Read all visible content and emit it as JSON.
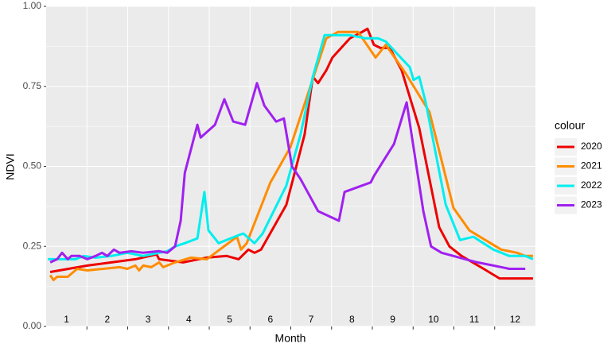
{
  "chart_data": {
    "type": "line",
    "x_label": "Month",
    "y_label": "NDVI",
    "legend_title": "colour",
    "xlim": [
      1,
      13
    ],
    "xticks": [
      {
        "value": 1.5,
        "label": "1"
      },
      {
        "value": 2.5,
        "label": "2"
      },
      {
        "value": 3.5,
        "label": "3"
      },
      {
        "value": 4.5,
        "label": "4"
      },
      {
        "value": 5.5,
        "label": "5"
      },
      {
        "value": 6.5,
        "label": "6"
      },
      {
        "value": 7.5,
        "label": "7"
      },
      {
        "value": 8.5,
        "label": "8"
      },
      {
        "value": 9.5,
        "label": "9"
      },
      {
        "value": 10.5,
        "label": "10"
      },
      {
        "value": 11.5,
        "label": "11"
      },
      {
        "value": 12.5,
        "label": "12"
      }
    ],
    "xbreaks": [
      2,
      3,
      4,
      5,
      6,
      7,
      8,
      9,
      10,
      11,
      12
    ],
    "ylim": [
      0,
      1
    ],
    "yticks": [
      {
        "value": 0,
        "label": "0.00"
      },
      {
        "value": 0.25,
        "label": "0.25"
      },
      {
        "value": 0.5,
        "label": "0.50"
      },
      {
        "value": 0.75,
        "label": "0.75"
      },
      {
        "value": 1,
        "label": "1.00"
      }
    ],
    "yminor": [
      0.125,
      0.375,
      0.625,
      0.875
    ],
    "grid": true,
    "series": [
      {
        "name": "2020",
        "color": "#ee0000",
        "x": [
          1.1,
          2.01,
          2.6,
          3.19,
          3.71,
          3.77,
          4.36,
          4.94,
          5.43,
          5.72,
          5.96,
          6.11,
          6.27,
          6.89,
          7.34,
          7.54,
          7.67,
          7.87,
          8.02,
          8.45,
          8.75,
          8.88,
          9.04,
          9.2,
          9.43,
          9.72,
          10.15,
          10.64,
          10.89,
          11.19,
          11.73,
          12.12,
          12.55,
          12.94
        ],
        "values": [
          0.17,
          0.19,
          0.2,
          0.21,
          0.225,
          0.21,
          0.2,
          0.215,
          0.22,
          0.21,
          0.24,
          0.23,
          0.24,
          0.38,
          0.6,
          0.78,
          0.76,
          0.8,
          0.84,
          0.9,
          0.92,
          0.93,
          0.88,
          0.87,
          0.87,
          0.8,
          0.62,
          0.31,
          0.25,
          0.22,
          0.18,
          0.15,
          0.15,
          0.15
        ]
      },
      {
        "name": "2021",
        "color": "#ff8c00",
        "x": [
          1.1,
          1.18,
          1.27,
          1.53,
          1.76,
          2.01,
          2.4,
          2.8,
          2.99,
          3.19,
          3.28,
          3.38,
          3.58,
          3.77,
          3.87,
          4.16,
          4.55,
          4.94,
          5.68,
          5.78,
          5.92,
          6.5,
          6.99,
          7.48,
          7.87,
          8.16,
          8.65,
          9.08,
          9.33,
          9.82,
          10.4,
          10.99,
          11.38,
          11.77,
          12.16,
          12.55,
          12.75,
          12.94
        ],
        "values": [
          0.16,
          0.145,
          0.155,
          0.155,
          0.18,
          0.175,
          0.18,
          0.185,
          0.18,
          0.19,
          0.175,
          0.19,
          0.185,
          0.2,
          0.185,
          0.2,
          0.215,
          0.21,
          0.28,
          0.24,
          0.26,
          0.45,
          0.56,
          0.75,
          0.9,
          0.92,
          0.92,
          0.84,
          0.88,
          0.79,
          0.67,
          0.37,
          0.3,
          0.27,
          0.24,
          0.23,
          0.22,
          0.22
        ]
      },
      {
        "name": "2022",
        "color": "#00eeee",
        "x": [
          1.04,
          1.33,
          1.72,
          1.92,
          2.21,
          2.6,
          2.8,
          2.99,
          3.38,
          3.97,
          4.16,
          4.4,
          4.71,
          4.88,
          4.98,
          5.23,
          5.72,
          5.84,
          6.11,
          6.31,
          6.89,
          7.24,
          7.34,
          7.54,
          7.83,
          8.45,
          8.84,
          9.14,
          9.33,
          9.62,
          9.92,
          10.01,
          10.15,
          10.31,
          10.8,
          11.15,
          11.48,
          11.97,
          12.36,
          12.75,
          12.94
        ],
        "values": [
          0.21,
          0.21,
          0.21,
          0.22,
          0.215,
          0.22,
          0.225,
          0.23,
          0.22,
          0.235,
          0.25,
          0.26,
          0.275,
          0.42,
          0.3,
          0.26,
          0.285,
          0.29,
          0.26,
          0.29,
          0.44,
          0.6,
          0.66,
          0.78,
          0.91,
          0.91,
          0.9,
          0.9,
          0.89,
          0.85,
          0.81,
          0.77,
          0.78,
          0.7,
          0.38,
          0.27,
          0.28,
          0.24,
          0.22,
          0.22,
          0.21
        ]
      },
      {
        "name": "2023",
        "color": "#a020f0",
        "x": [
          1.1,
          1.27,
          1.39,
          1.53,
          1.62,
          1.82,
          2.01,
          2.21,
          2.37,
          2.5,
          2.66,
          2.8,
          3.09,
          3.38,
          3.77,
          3.97,
          4.16,
          4.3,
          4.4,
          4.71,
          4.79,
          5.14,
          5.37,
          5.59,
          5.88,
          6.17,
          6.35,
          6.64,
          6.83,
          7.03,
          7.24,
          7.67,
          8.18,
          8.32,
          8.96,
          9.04,
          9.53,
          9.84,
          10.25,
          10.44,
          10.7,
          10.99,
          11.28,
          11.58,
          11.97,
          12.36,
          12.55,
          12.75
        ],
        "values": [
          0.2,
          0.21,
          0.23,
          0.21,
          0.22,
          0.22,
          0.21,
          0.22,
          0.23,
          0.22,
          0.24,
          0.23,
          0.235,
          0.23,
          0.235,
          0.23,
          0.25,
          0.33,
          0.48,
          0.63,
          0.59,
          0.63,
          0.71,
          0.64,
          0.63,
          0.76,
          0.69,
          0.64,
          0.65,
          0.5,
          0.46,
          0.36,
          0.33,
          0.42,
          0.45,
          0.47,
          0.57,
          0.7,
          0.36,
          0.25,
          0.23,
          0.22,
          0.21,
          0.2,
          0.19,
          0.18,
          0.18,
          0.18
        ]
      }
    ]
  }
}
